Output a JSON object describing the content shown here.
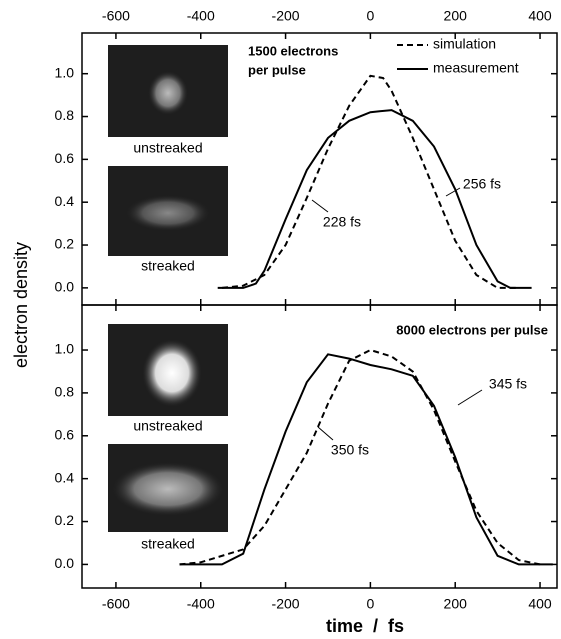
{
  "chart_data": [
    {
      "type": "line",
      "xlim": [
        -680,
        440
      ],
      "ylim": [
        -0.08,
        1.19
      ],
      "xticks": [
        -600,
        -400,
        -200,
        0,
        200,
        400
      ],
      "yticks": [
        {
          "value": 0,
          "label": "0.0"
        },
        0.2,
        0.4,
        0.6,
        0.8,
        {
          "value": 1,
          "label": "1.0"
        }
      ],
      "ylabel": "electron density",
      "annotations": [
        "1500 electrons",
        "per pulse",
        "228 fs",
        "256 fs",
        "unstreaked",
        "streaked"
      ],
      "series": [
        {
          "name": "simulation",
          "color": "#000000",
          "style": "dashed",
          "x": [
            -350,
            -300,
            -250,
            -200,
            -150,
            -100,
            -50,
            0,
            30,
            50,
            100,
            150,
            200,
            250,
            300,
            350
          ],
          "values": [
            0,
            0.01,
            0.06,
            0.2,
            0.42,
            0.65,
            0.85,
            0.99,
            0.98,
            0.92,
            0.7,
            0.46,
            0.22,
            0.06,
            0,
            0
          ]
        },
        {
          "name": "measurement",
          "color": "#000000",
          "style": "solid",
          "x": [
            -360,
            -300,
            -270,
            -250,
            -200,
            -150,
            -100,
            -50,
            0,
            50,
            100,
            150,
            200,
            250,
            300,
            330,
            380
          ],
          "values": [
            0,
            0,
            0.02,
            0.08,
            0.32,
            0.55,
            0.7,
            0.78,
            0.82,
            0.83,
            0.78,
            0.66,
            0.46,
            0.2,
            0.03,
            0,
            0
          ]
        }
      ]
    },
    {
      "type": "line",
      "xlim": [
        -680,
        440
      ],
      "ylim": [
        -0.11,
        1.21
      ],
      "xticks": [
        -600,
        -400,
        -200,
        0,
        200,
        400
      ],
      "yticks": [
        {
          "value": 0,
          "label": "0.0"
        },
        0.2,
        0.4,
        0.6,
        0.8,
        {
          "value": 1,
          "label": "1.0"
        }
      ],
      "xlabel": "time  /  fs",
      "annotations": [
        "8000 electrons per pulse",
        "350 fs",
        "345 fs",
        "unstreaked",
        "streaked"
      ],
      "series": [
        {
          "color": "#000000",
          "style": "dashed",
          "x": [
            -450,
            -400,
            -300,
            -250,
            -200,
            -150,
            -100,
            -50,
            0,
            50,
            100,
            150,
            200,
            250,
            300,
            350,
            400
          ],
          "values": [
            0,
            0.01,
            0.07,
            0.18,
            0.35,
            0.52,
            0.75,
            0.95,
            1.0,
            0.97,
            0.9,
            0.72,
            0.48,
            0.25,
            0.1,
            0.02,
            0
          ]
        },
        {
          "color": "#000000",
          "style": "solid",
          "x": [
            -450,
            -350,
            -300,
            -250,
            -200,
            -150,
            -100,
            -50,
            0,
            50,
            100,
            150,
            200,
            250,
            300,
            350,
            430
          ],
          "values": [
            0,
            0,
            0.05,
            0.35,
            0.62,
            0.85,
            0.98,
            0.96,
            0.93,
            0.91,
            0.88,
            0.74,
            0.5,
            0.22,
            0.04,
            0,
            0
          ]
        }
      ]
    }
  ]
}
